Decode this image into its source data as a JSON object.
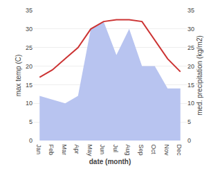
{
  "chart_data": {
    "type": "line",
    "categories": [
      "Jan",
      "Feb",
      "Mar",
      "Apr",
      "May",
      "Jun",
      "Jul",
      "Aug",
      "Sep",
      "Oct",
      "Nov",
      "Dec"
    ],
    "series": [
      {
        "type": "line",
        "color": "#cc3333",
        "axis": "y",
        "values": [
          17,
          19,
          22,
          25,
          30,
          32,
          32.5,
          32.5,
          32,
          27,
          22,
          18.5
        ]
      },
      {
        "type": "area",
        "color": "#b8c4f0",
        "axis": "y2",
        "values": [
          12,
          11,
          10,
          12,
          30,
          32,
          23,
          30,
          20,
          20,
          14,
          14
        ]
      }
    ],
    "xlabel": "date (month)",
    "ylabel": "max temp (C)",
    "y2label": "med. precipitation (kg/m2)",
    "ylim": [
      0,
      35
    ],
    "yticks": [
      0,
      5,
      10,
      15,
      20,
      25,
      30,
      35
    ],
    "y2lim": [
      0,
      35
    ],
    "y2ticks": [
      0,
      5,
      10,
      15,
      20,
      25,
      30,
      35
    ],
    "grid": true
  }
}
